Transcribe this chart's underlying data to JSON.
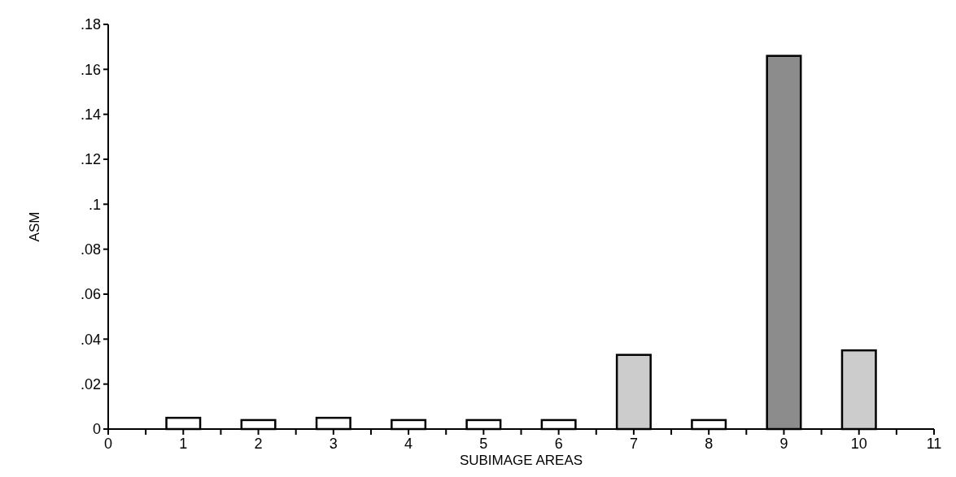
{
  "chart_data": {
    "type": "bar",
    "xlabel": "SUBIMAGE AREAS",
    "ylabel": "ASM",
    "x": [
      1,
      2,
      3,
      4,
      5,
      6,
      7,
      8,
      9,
      10
    ],
    "values": [
      0.005,
      0.004,
      0.005,
      0.004,
      0.004,
      0.004,
      0.033,
      0.004,
      0.166,
      0.035
    ],
    "colors": [
      "#ffffff",
      "#ffffff",
      "#ffffff",
      "#ffffff",
      "#ffffff",
      "#ffffff",
      "#cccccc",
      "#ffffff",
      "#8c8c8c",
      "#cccccc"
    ],
    "xlim": [
      0,
      11
    ],
    "xticks": [
      0,
      {
        "value": 0.5,
        "label": null
      },
      1,
      {
        "value": 1.5,
        "label": null
      },
      2,
      {
        "value": 2.5,
        "label": null
      },
      3,
      {
        "value": 3.5,
        "label": null
      },
      4,
      {
        "value": 4.5,
        "label": null
      },
      5,
      {
        "value": 5.5,
        "label": null
      },
      6,
      {
        "value": 6.5,
        "label": null
      },
      7,
      {
        "value": 7.5,
        "label": null
      },
      8,
      {
        "value": 8.5,
        "label": null
      },
      9,
      {
        "value": 9.5,
        "label": null
      },
      10,
      {
        "value": 10.5,
        "label": null
      },
      11
    ],
    "ylim": [
      0,
      0.18
    ],
    "yticks": [
      {
        "value": 0,
        "label": "0"
      },
      {
        "value": 0.02,
        "label": ".02"
      },
      {
        "value": 0.04,
        "label": ".04"
      },
      {
        "value": 0.06,
        "label": ".06"
      },
      {
        "value": 0.08,
        "label": ".08"
      },
      {
        "value": 0.1,
        "label": ".1"
      },
      {
        "value": 0.12,
        "label": ".12"
      },
      {
        "value": 0.14,
        "label": ".14"
      },
      {
        "value": 0.16,
        "label": ".16"
      },
      {
        "value": 0.18,
        "label": ".18"
      }
    ],
    "grid": false
  }
}
